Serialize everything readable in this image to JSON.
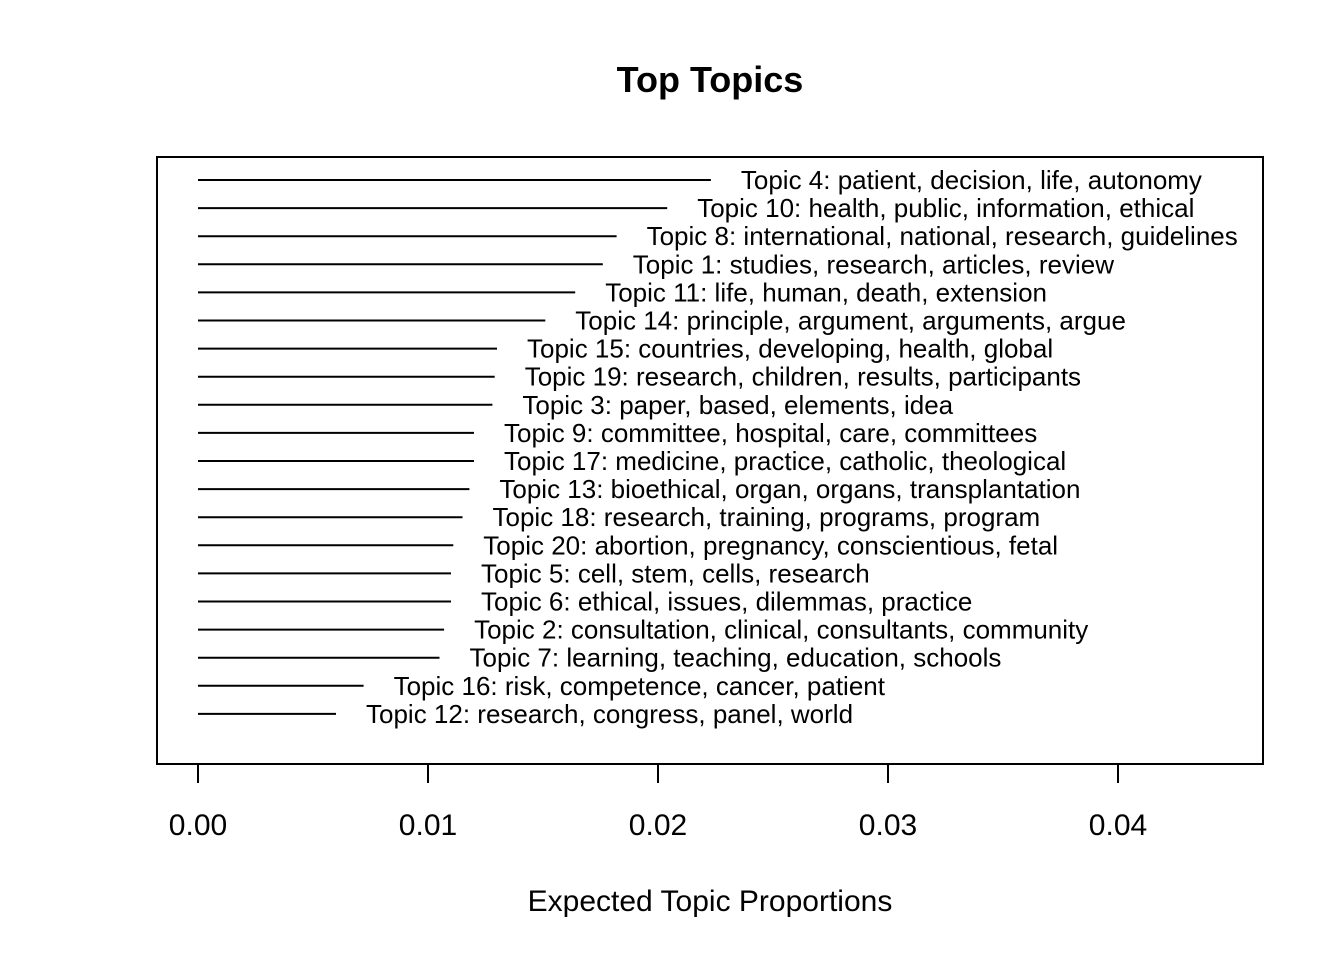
{
  "chart_data": {
    "type": "bar",
    "title": "Top Topics",
    "xlabel": "Expected Topic Proportions",
    "ylabel": "",
    "xlim": [
      0,
      0.046
    ],
    "x_ticks": [
      "0.00",
      "0.01",
      "0.02",
      "0.03",
      "0.04"
    ],
    "x_tick_values": [
      0.0,
      0.01,
      0.02,
      0.03,
      0.04
    ],
    "grid": false,
    "orientation": "horizontal",
    "categories": [
      "Topic 4: patient, decision, life, autonomy",
      "Topic 10: health, public, information, ethical",
      "Topic 8: international, national, research, guidelines",
      "Topic 1: studies, research, articles, review",
      "Topic 11: life, human, death, extension",
      "Topic 14: principle, argument, arguments, argue",
      "Topic 15: countries, developing, health, global",
      "Topic 19: research, children, results, participants",
      "Topic 3: paper, based, elements, idea",
      "Topic 9: committee, hospital, care, committees",
      "Topic 17: medicine, practice, catholic, theological",
      "Topic 13: bioethical, organ, organs, transplantation",
      "Topic 18: research, training, programs, program",
      "Topic 20: abortion, pregnancy, conscientious, fetal",
      "Topic 5: cell, stem, cells, research",
      "Topic 6: ethical, issues, dilemmas, practice",
      "Topic 2: consultation, clinical, consultants, community",
      "Topic 7: learning, teaching, education, schools",
      "Topic 16: risk, competence, cancer, patient",
      "Topic 12: research, congress, panel, world"
    ],
    "values": [
      0.0223,
      0.0204,
      0.0182,
      0.0176,
      0.0164,
      0.0151,
      0.013,
      0.0129,
      0.0128,
      0.012,
      0.012,
      0.0118,
      0.0115,
      0.0111,
      0.011,
      0.011,
      0.0107,
      0.0105,
      0.0072,
      0.006
    ]
  }
}
